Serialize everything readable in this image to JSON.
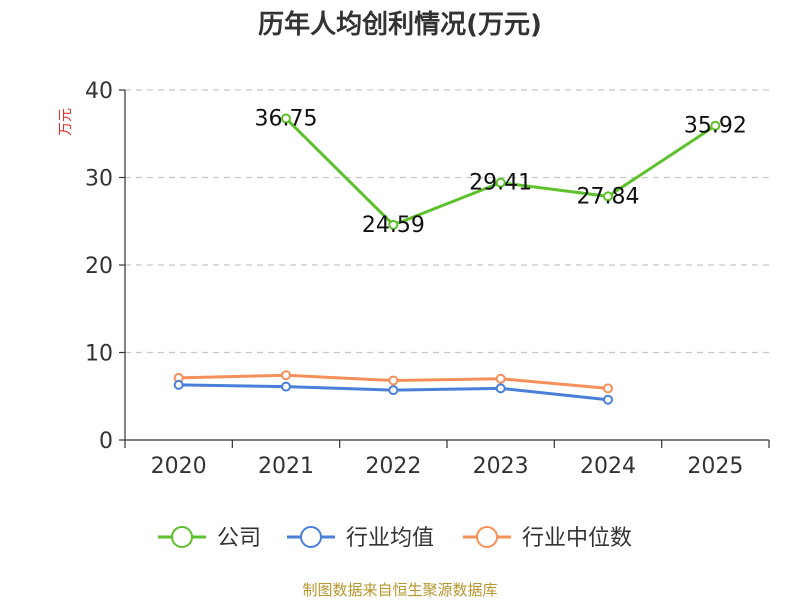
{
  "chart_data": {
    "type": "line",
    "title": "历年人均创利情况(万元)",
    "ylabel": "万元",
    "xlabel": "",
    "categories": [
      "2020",
      "2021",
      "2022",
      "2023",
      "2024",
      "2025"
    ],
    "ylim": [
      0,
      40
    ],
    "yticks": [
      0,
      10,
      20,
      30,
      40
    ],
    "grid": "horizontal dashed",
    "legend_position": "bottom",
    "series": [
      {
        "name": "公司",
        "color": "#5cc12a",
        "values": [
          null,
          36.75,
          24.59,
          29.41,
          27.84,
          35.92
        ],
        "labels": [
          null,
          "36.75",
          "24.59",
          "29.41",
          "27.84",
          "35.92"
        ]
      },
      {
        "name": "行业均值",
        "color": "#4a7fd8",
        "values": [
          6.3,
          6.1,
          5.7,
          5.9,
          4.6,
          null
        ]
      },
      {
        "name": "行业中位数",
        "color": "#f5905a",
        "values": [
          7.1,
          7.4,
          6.8,
          7.0,
          5.9,
          null
        ]
      }
    ]
  },
  "source": "制图数据来自恒生聚源数据库"
}
